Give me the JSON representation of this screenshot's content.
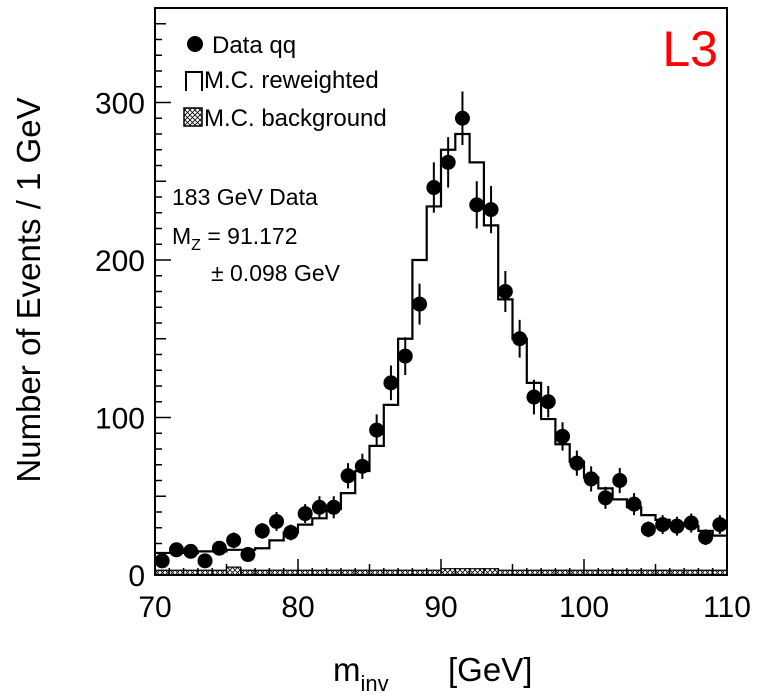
{
  "chart_data": {
    "type": "scatter",
    "experiment_label": "L3",
    "xlabel": {
      "main": "m",
      "subscript": "inv",
      "unit": "[GeV]"
    },
    "ylabel": "Number of Events / 1 GeV",
    "xlim": [
      70,
      110
    ],
    "ylim": [
      0,
      360
    ],
    "x_ticks": [
      70,
      80,
      90,
      100,
      110
    ],
    "y_ticks": [
      0,
      100,
      200,
      300
    ],
    "grid": false,
    "legend": {
      "placement": "top-left",
      "entries": [
        {
          "marker": "filled-circle",
          "label": "Data qq"
        },
        {
          "marker": "open-box",
          "label": "M.C. reweighted"
        },
        {
          "marker": "hatched-box",
          "label": "M.C. background"
        }
      ]
    },
    "annotation": {
      "line1": "183 GeV Data",
      "mz_symbol": "M",
      "mz_subscript": "Z",
      "mz_value": " = 91.172",
      "mz_error": "± 0.098 GeV"
    },
    "series": [
      {
        "name": "Data qq",
        "kind": "points-with-errors",
        "x": [
          70.5,
          71.5,
          72.5,
          73.5,
          74.5,
          75.5,
          76.5,
          77.5,
          78.5,
          79.5,
          80.5,
          81.5,
          82.5,
          83.5,
          84.5,
          85.5,
          86.5,
          87.5,
          88.5,
          89.5,
          90.5,
          91.5,
          92.5,
          93.5,
          94.5,
          95.5,
          96.5,
          97.5,
          98.5,
          99.5,
          100.5,
          101.5,
          102.5,
          103.5,
          104.5,
          105.5,
          106.5,
          107.5,
          108.5,
          109.5
        ],
        "y": [
          9,
          16,
          15,
          9,
          17,
          22,
          13,
          28,
          34,
          27,
          39,
          43,
          43,
          63,
          69,
          92,
          122,
          139,
          172,
          246,
          262,
          290,
          235,
          232,
          180,
          150,
          113,
          110,
          88,
          71,
          61,
          49,
          60,
          45,
          29,
          32,
          31,
          33,
          24,
          32
        ],
        "err": [
          3,
          4,
          4,
          3,
          4,
          5,
          4,
          5,
          6,
          5,
          6,
          7,
          7,
          8,
          8,
          10,
          11,
          12,
          13,
          16,
          16,
          17,
          15,
          15,
          13,
          12,
          11,
          10,
          9,
          8,
          8,
          7,
          8,
          7,
          5,
          6,
          6,
          6,
          5,
          6
        ]
      },
      {
        "name": "M.C. reweighted",
        "kind": "step-histogram",
        "bin_edges": [
          70,
          71,
          72,
          73,
          74,
          75,
          76,
          77,
          78,
          79,
          80,
          81,
          82,
          83,
          84,
          85,
          86,
          87,
          88,
          89,
          90,
          91,
          92,
          93,
          94,
          95,
          96,
          97,
          98,
          99,
          100,
          101,
          102,
          103,
          104,
          105,
          106,
          107,
          108,
          109,
          110
        ],
        "values": [
          14,
          14,
          14,
          15,
          15,
          16,
          16,
          17,
          22,
          27,
          32,
          36,
          42,
          52,
          66,
          82,
          108,
          150,
          200,
          234,
          270,
          280,
          262,
          222,
          175,
          150,
          122,
          99,
          83,
          72,
          62,
          55,
          48,
          43,
          38,
          35,
          33,
          31,
          28,
          25
        ]
      },
      {
        "name": "M.C. background",
        "kind": "hatched-histogram",
        "bin_edges": [
          70,
          71,
          72,
          73,
          74,
          75,
          76,
          77,
          78,
          79,
          80,
          81,
          82,
          83,
          84,
          85,
          86,
          87,
          88,
          89,
          90,
          91,
          92,
          93,
          94,
          95,
          96,
          97,
          98,
          99,
          100,
          101,
          102,
          103,
          104,
          105,
          106,
          107,
          108,
          109,
          110
        ],
        "values": [
          3,
          3,
          3,
          3,
          3,
          5,
          3,
          3,
          3,
          3,
          3,
          3,
          3,
          3,
          3,
          3,
          3,
          3,
          3,
          3,
          4,
          4,
          4,
          4,
          3,
          3,
          3,
          3,
          3,
          3,
          3,
          3,
          3,
          3,
          3,
          3,
          3,
          3,
          3,
          3
        ]
      }
    ]
  }
}
